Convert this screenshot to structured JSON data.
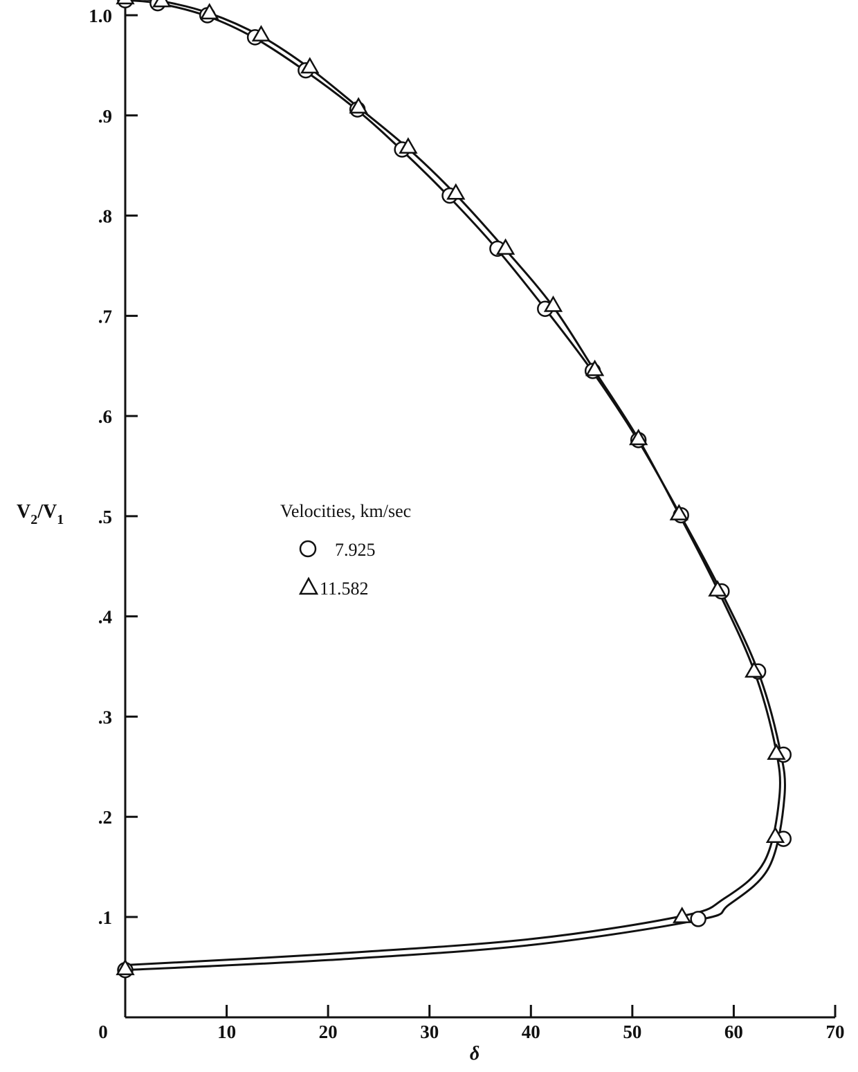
{
  "chart_data": {
    "type": "scatter",
    "title": "",
    "xlabel": "δ",
    "ylabel_main": "V",
    "ylabel_sub2": "2",
    "ylabel_slash": "/V",
    "ylabel_sub1": "1",
    "xlim": [
      0,
      70
    ],
    "ylim": [
      0,
      1.02
    ],
    "grid": false,
    "x_ticks": [
      {
        "value": 0,
        "label": "0"
      },
      {
        "value": 10,
        "label": "10"
      },
      {
        "value": 20,
        "label": "20"
      },
      {
        "value": 30,
        "label": "30"
      },
      {
        "value": 40,
        "label": "40"
      },
      {
        "value": 50,
        "label": "50"
      },
      {
        "value": 60,
        "label": "60"
      },
      {
        "value": 70,
        "label": "70"
      }
    ],
    "y_ticks": [
      {
        "value": 0.1,
        "label": ".1"
      },
      {
        "value": 0.2,
        "label": ".2"
      },
      {
        "value": 0.3,
        "label": ".3"
      },
      {
        "value": 0.4,
        "label": ".4"
      },
      {
        "value": 0.5,
        "label": ".5"
      },
      {
        "value": 0.6,
        "label": ".6"
      },
      {
        "value": 0.7,
        "label": ".7"
      },
      {
        "value": 0.8,
        "label": ".8"
      },
      {
        "value": 0.9,
        "label": ".9"
      },
      {
        "value": 1.0,
        "label": "1.0"
      }
    ],
    "legend": {
      "title": "Velocities, km/sec",
      "placement": "center",
      "entries": [
        "7.925",
        "11.582"
      ]
    },
    "series": [
      {
        "name": "7.925",
        "marker": "circle",
        "color": "#111111",
        "points": [
          {
            "x": 0,
            "y": 1.015
          },
          {
            "x": 3.2,
            "y": 1.012
          },
          {
            "x": 8.1,
            "y": 1.0
          },
          {
            "x": 12.8,
            "y": 0.978
          },
          {
            "x": 17.8,
            "y": 0.945
          },
          {
            "x": 22.9,
            "y": 0.906
          },
          {
            "x": 27.3,
            "y": 0.866
          },
          {
            "x": 32.0,
            "y": 0.82
          },
          {
            "x": 36.7,
            "y": 0.767
          },
          {
            "x": 41.4,
            "y": 0.707
          },
          {
            "x": 46.1,
            "y": 0.645
          },
          {
            "x": 50.6,
            "y": 0.576
          },
          {
            "x": 54.8,
            "y": 0.501
          },
          {
            "x": 58.8,
            "y": 0.425
          },
          {
            "x": 62.4,
            "y": 0.345
          },
          {
            "x": 64.9,
            "y": 0.262
          },
          {
            "x": 64.9,
            "y": 0.178
          },
          {
            "x": 56.5,
            "y": 0.098
          },
          {
            "x": 0,
            "y": 0.047
          }
        ]
      },
      {
        "name": "11.582",
        "marker": "triangle",
        "color": "#111111",
        "points": [
          {
            "x": 0,
            "y": 1.017
          },
          {
            "x": 3.6,
            "y": 1.014
          },
          {
            "x": 8.3,
            "y": 1.002
          },
          {
            "x": 13.4,
            "y": 0.98
          },
          {
            "x": 18.2,
            "y": 0.948
          },
          {
            "x": 23.0,
            "y": 0.908
          },
          {
            "x": 27.9,
            "y": 0.868
          },
          {
            "x": 32.6,
            "y": 0.822
          },
          {
            "x": 37.5,
            "y": 0.767
          },
          {
            "x": 42.2,
            "y": 0.71
          },
          {
            "x": 46.3,
            "y": 0.646
          },
          {
            "x": 50.6,
            "y": 0.577
          },
          {
            "x": 54.6,
            "y": 0.502
          },
          {
            "x": 58.4,
            "y": 0.426
          },
          {
            "x": 62.0,
            "y": 0.345
          },
          {
            "x": 64.2,
            "y": 0.263
          },
          {
            "x": 64.1,
            "y": 0.18
          },
          {
            "x": 54.9,
            "y": 0.1
          },
          {
            "x": 0,
            "y": 0.048
          }
        ]
      }
    ],
    "curves": [
      {
        "name": "7.925 curve",
        "points": [
          [
            0,
            1.015
          ],
          [
            3.2,
            1.012
          ],
          [
            8.1,
            0.999
          ],
          [
            12.8,
            0.977
          ],
          [
            17.8,
            0.944
          ],
          [
            22.9,
            0.905
          ],
          [
            27.3,
            0.865
          ],
          [
            32.0,
            0.818
          ],
          [
            36.7,
            0.766
          ],
          [
            41.4,
            0.707
          ],
          [
            46.1,
            0.644
          ],
          [
            50.6,
            0.575
          ],
          [
            54.8,
            0.5
          ],
          [
            58.8,
            0.424
          ],
          [
            62.4,
            0.345
          ],
          [
            64.5,
            0.27
          ],
          [
            65.0,
            0.22
          ],
          [
            63.5,
            0.15
          ],
          [
            59.5,
            0.112
          ],
          [
            56.5,
            0.097
          ],
          [
            40,
            0.072
          ],
          [
            20,
            0.057
          ],
          [
            0,
            0.047
          ]
        ]
      },
      {
        "name": "11.582 curve",
        "points": [
          [
            0,
            1.017
          ],
          [
            3.6,
            1.014
          ],
          [
            8.3,
            1.002
          ],
          [
            13.4,
            0.979
          ],
          [
            18.2,
            0.947
          ],
          [
            23.0,
            0.908
          ],
          [
            27.9,
            0.867
          ],
          [
            32.6,
            0.821
          ],
          [
            37.5,
            0.766
          ],
          [
            42.2,
            0.709
          ],
          [
            46.3,
            0.645
          ],
          [
            50.6,
            0.577
          ],
          [
            54.6,
            0.502
          ],
          [
            58.4,
            0.427
          ],
          [
            62.0,
            0.346
          ],
          [
            64.1,
            0.27
          ],
          [
            64.5,
            0.22
          ],
          [
            63.0,
            0.155
          ],
          [
            59.0,
            0.118
          ],
          [
            54.9,
            0.101
          ],
          [
            40,
            0.078
          ],
          [
            20,
            0.063
          ],
          [
            0,
            0.052
          ]
        ]
      }
    ]
  }
}
